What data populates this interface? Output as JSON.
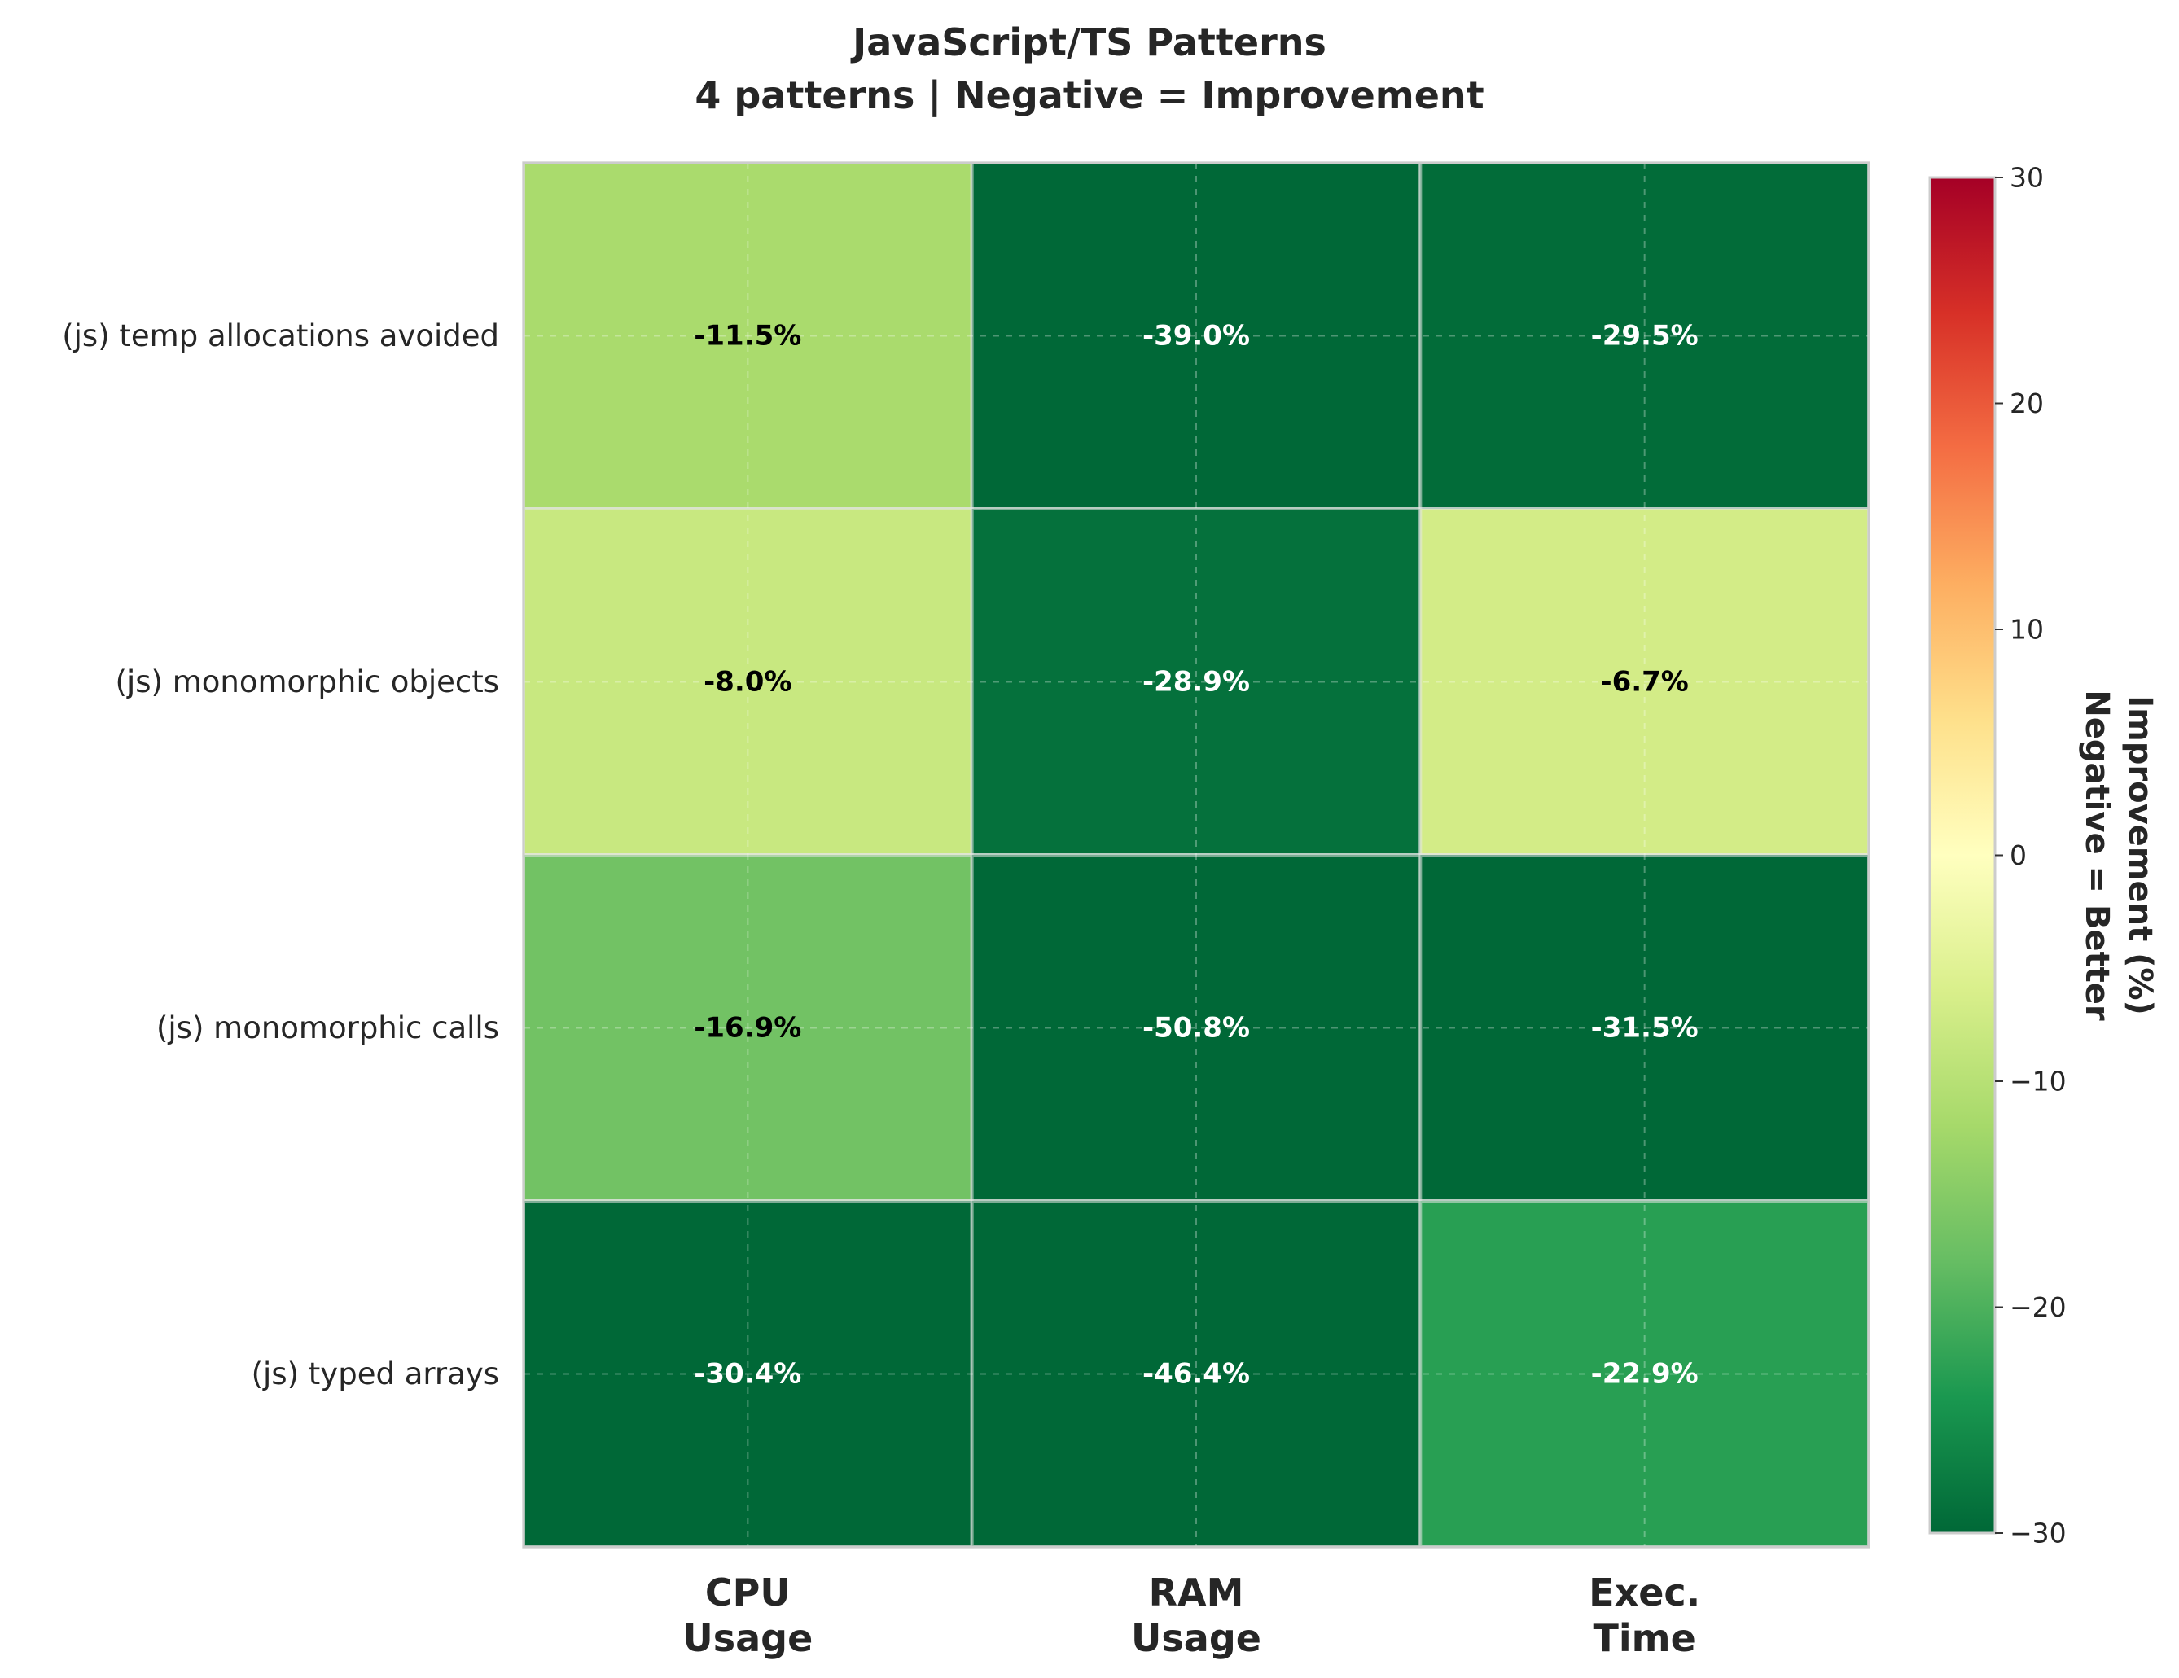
{
  "chart_data": {
    "type": "heatmap",
    "title": "JavaScript/TS Patterns",
    "subtitle": "4 patterns | Negative = Improvement",
    "rows": [
      "(js) temp allocations avoided",
      "(js) monomorphic objects",
      "(js) monomorphic calls",
      "(js) typed arrays"
    ],
    "columns": [
      [
        "CPU",
        "Usage"
      ],
      [
        "RAM",
        "Usage"
      ],
      [
        "Exec.",
        "Time"
      ]
    ],
    "values": [
      [
        -11.5,
        -39.0,
        -29.5
      ],
      [
        -8.0,
        -28.9,
        -6.7
      ],
      [
        -16.9,
        -50.8,
        -31.5
      ],
      [
        -30.4,
        -46.4,
        -22.9
      ]
    ],
    "value_suffix": "%",
    "colormap": "RdYlGn_r",
    "colormap_stops": [
      "#006837",
      "#1a9850",
      "#66bd63",
      "#a6d96a",
      "#d9ef8b",
      "#ffffbf",
      "#fee08b",
      "#fdae61",
      "#f46d43",
      "#d73027",
      "#a50026"
    ],
    "colorbar": {
      "range": [
        -30,
        30
      ],
      "ticks": [
        30,
        20,
        10,
        0,
        -10,
        -20,
        -30
      ],
      "tick_labels": [
        "30",
        "20",
        "10",
        "0",
        "−10",
        "−20",
        "−30"
      ],
      "label_lines": [
        "Improvement (%)",
        "Negative = Better"
      ]
    },
    "grid": true
  }
}
